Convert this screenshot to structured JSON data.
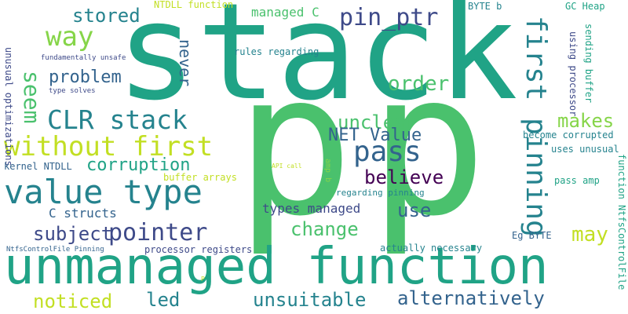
{
  "palette": {
    "teal_green": "#20a386",
    "green": "#4ac16d",
    "light_green": "#86d549",
    "yellow_green": "#c2df23",
    "teal": "#25838e",
    "blue": "#33638d",
    "indigo": "#3e4a89",
    "dark_purple": "#440154",
    "background": "#ffffff"
  },
  "words": [
    "stack",
    "p",
    "p",
    "unmanaged function",
    "value type",
    "without first",
    "CLR stack",
    "pass",
    "first pinning",
    "pointer",
    "pin_ptr",
    "way",
    "stored",
    "seem",
    "problem",
    "order",
    "unclear",
    "makes",
    "NET Value",
    "believe",
    "corruption",
    "use",
    "change",
    "may",
    "subject",
    "noticed",
    "led",
    "unsuitable",
    "alternatively",
    "types managed",
    "C structs",
    "never",
    "managed C",
    "rules regarding",
    "unusual optimizations",
    "NTDLL function",
    "BYTE b",
    "GC Heap",
    "using processor",
    "sending buffer",
    "kernel NTDLL",
    "buffer arrays",
    "become corrupted",
    "uses unusual",
    "pass amp",
    "amp b",
    "regarding pinning",
    "actually necessary",
    "processor registers",
    "NtfsControlFile Pinning",
    "Eg BYTE",
    "function NtfsControlFile",
    "fundamentally unsafe",
    "type solves",
    "API call",
    "P"
  ]
}
